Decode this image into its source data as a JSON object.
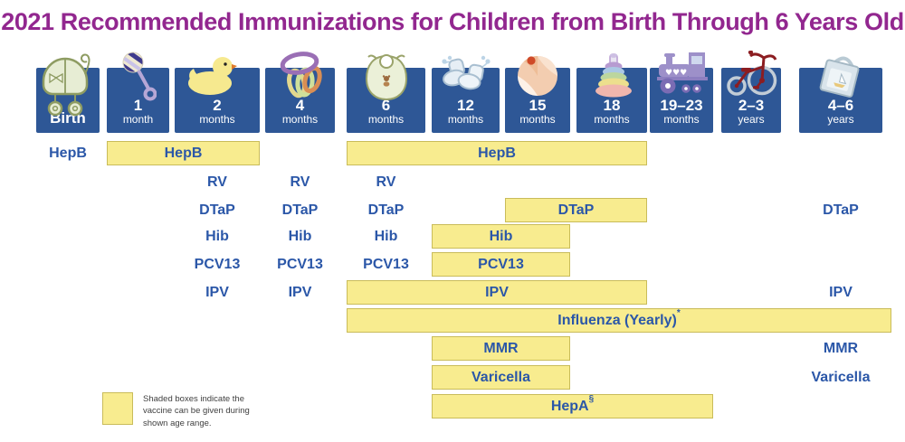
{
  "title": {
    "text": "2021 Recommended Immunizations for Children from Birth Through 6 Years Old"
  },
  "colors": {
    "title_purple": "#92278F",
    "header_blue": "#2E5796",
    "label_blue": "#2B57A8",
    "box_yellow": "#F8EC8F",
    "box_border": "#C9BC5A",
    "legend_gray": "#3F3F3F"
  },
  "header": {
    "columns": [
      {
        "id": "birth",
        "num": "Birth",
        "unit": "",
        "icon": "baby-carriage"
      },
      {
        "id": "1m",
        "num": "1",
        "unit": "month",
        "icon": "rattle"
      },
      {
        "id": "2m",
        "num": "2",
        "unit": "months",
        "icon": "rubber-duck"
      },
      {
        "id": "4m",
        "num": "4",
        "unit": "months",
        "icon": "linking-rings"
      },
      {
        "id": "6m",
        "num": "6",
        "unit": "months",
        "icon": "bib"
      },
      {
        "id": "12m",
        "num": "12",
        "unit": "months",
        "icon": "booties"
      },
      {
        "id": "15m",
        "num": "15",
        "unit": "months",
        "icon": "beach-ball"
      },
      {
        "id": "18m",
        "num": "18",
        "unit": "months",
        "icon": "ring-stacker"
      },
      {
        "id": "19-23m",
        "num": "19–23",
        "unit": "months",
        "icon": "toy-train"
      },
      {
        "id": "2-3y",
        "num": "2–3",
        "unit": "years",
        "icon": "tricycle"
      },
      {
        "id": "4-6y",
        "num": "4–6",
        "unit": "years",
        "icon": "book-bag"
      }
    ]
  },
  "rows": [
    {
      "name": "HepB",
      "cells": [
        {
          "type": "text",
          "col": "birth",
          "label": "HepB"
        },
        {
          "type": "box",
          "from": "1m",
          "to": "2m",
          "label": "HepB"
        },
        {
          "type": "box",
          "from": "6m",
          "to": "18m",
          "label": "HepB"
        }
      ]
    },
    {
      "name": "RV",
      "cells": [
        {
          "type": "text",
          "col": "2m",
          "label": "RV"
        },
        {
          "type": "text",
          "col": "4m",
          "label": "RV"
        },
        {
          "type": "text",
          "col": "6m",
          "label": "RV"
        }
      ]
    },
    {
      "name": "DTaP",
      "cells": [
        {
          "type": "text",
          "col": "2m",
          "label": "DTaP"
        },
        {
          "type": "text",
          "col": "4m",
          "label": "DTaP"
        },
        {
          "type": "text",
          "col": "6m",
          "label": "DTaP"
        },
        {
          "type": "box",
          "from": "15m",
          "to": "18m",
          "label": "DTaP"
        },
        {
          "type": "text",
          "col": "4-6y",
          "label": "DTaP"
        }
      ]
    },
    {
      "name": "Hib",
      "cells": [
        {
          "type": "text",
          "col": "2m",
          "label": "Hib"
        },
        {
          "type": "text",
          "col": "4m",
          "label": "Hib"
        },
        {
          "type": "text",
          "col": "6m",
          "label": "Hib"
        },
        {
          "type": "box",
          "from": "12m",
          "to": "15m",
          "label": "Hib"
        }
      ]
    },
    {
      "name": "PCV13",
      "cells": [
        {
          "type": "text",
          "col": "2m",
          "label": "PCV13"
        },
        {
          "type": "text",
          "col": "4m",
          "label": "PCV13"
        },
        {
          "type": "text",
          "col": "6m",
          "label": "PCV13"
        },
        {
          "type": "box",
          "from": "12m",
          "to": "15m",
          "label": "PCV13"
        }
      ]
    },
    {
      "name": "IPV",
      "cells": [
        {
          "type": "text",
          "col": "2m",
          "label": "IPV"
        },
        {
          "type": "text",
          "col": "4m",
          "label": "IPV"
        },
        {
          "type": "box",
          "from": "6m",
          "to": "18m",
          "label": "IPV"
        },
        {
          "type": "text",
          "col": "4-6y",
          "label": "IPV"
        }
      ]
    },
    {
      "name": "Influenza",
      "cells": [
        {
          "type": "box",
          "from": "6m",
          "to": "4-6y",
          "label": "Influenza (Yearly)",
          "sup": "*"
        }
      ]
    },
    {
      "name": "MMR",
      "cells": [
        {
          "type": "box",
          "from": "12m",
          "to": "15m",
          "label": "MMR"
        },
        {
          "type": "text",
          "col": "4-6y",
          "label": "MMR"
        }
      ]
    },
    {
      "name": "Varicella",
      "cells": [
        {
          "type": "box",
          "from": "12m",
          "to": "15m",
          "label": "Varicella"
        },
        {
          "type": "text",
          "col": "4-6y",
          "label": "Varicella"
        }
      ]
    },
    {
      "name": "HepA",
      "cells": [
        {
          "type": "box",
          "from": "12m",
          "to": "19-23m",
          "label": "HepA",
          "sup": "§"
        }
      ]
    }
  ],
  "legend": {
    "lines": [
      "Shaded boxes indicate the",
      "vaccine can be given during",
      "shown age range."
    ]
  },
  "chart_data": {
    "type": "table",
    "title": "2021 Recommended Immunizations for Children from Birth Through 6 Years Old",
    "columns": [
      "Birth",
      "1 month",
      "2 months",
      "4 months",
      "6 months",
      "12 months",
      "15 months",
      "18 months",
      "19–23 months",
      "2–3 years",
      "4–6 years"
    ],
    "legend": "Shaded boxes indicate the vaccine can be given during shown age range.",
    "vaccines": [
      {
        "name": "HepB",
        "doses_text_at": [
          "Birth"
        ],
        "shaded_ranges": [
          [
            "1 month",
            "2 months"
          ],
          [
            "6 months",
            "18 months"
          ]
        ]
      },
      {
        "name": "RV",
        "doses_text_at": [
          "2 months",
          "4 months",
          "6 months"
        ],
        "shaded_ranges": []
      },
      {
        "name": "DTaP",
        "doses_text_at": [
          "2 months",
          "4 months",
          "6 months",
          "4–6 years"
        ],
        "shaded_ranges": [
          [
            "15 months",
            "18 months"
          ]
        ]
      },
      {
        "name": "Hib",
        "doses_text_at": [
          "2 months",
          "4 months",
          "6 months"
        ],
        "shaded_ranges": [
          [
            "12 months",
            "15 months"
          ]
        ]
      },
      {
        "name": "PCV13",
        "doses_text_at": [
          "2 months",
          "4 months",
          "6 months"
        ],
        "shaded_ranges": [
          [
            "12 months",
            "15 months"
          ]
        ]
      },
      {
        "name": "IPV",
        "doses_text_at": [
          "2 months",
          "4 months",
          "4–6 years"
        ],
        "shaded_ranges": [
          [
            "6 months",
            "18 months"
          ]
        ]
      },
      {
        "name": "Influenza (Yearly)*",
        "doses_text_at": [],
        "shaded_ranges": [
          [
            "6 months",
            "4–6 years"
          ]
        ]
      },
      {
        "name": "MMR",
        "doses_text_at": [
          "4–6 years"
        ],
        "shaded_ranges": [
          [
            "12 months",
            "15 months"
          ]
        ]
      },
      {
        "name": "Varicella",
        "doses_text_at": [
          "4–6 years"
        ],
        "shaded_ranges": [
          [
            "12 months",
            "15 months"
          ]
        ]
      },
      {
        "name": "HepA§",
        "doses_text_at": [],
        "shaded_ranges": [
          [
            "12 months",
            "19–23 months"
          ]
        ]
      }
    ]
  }
}
